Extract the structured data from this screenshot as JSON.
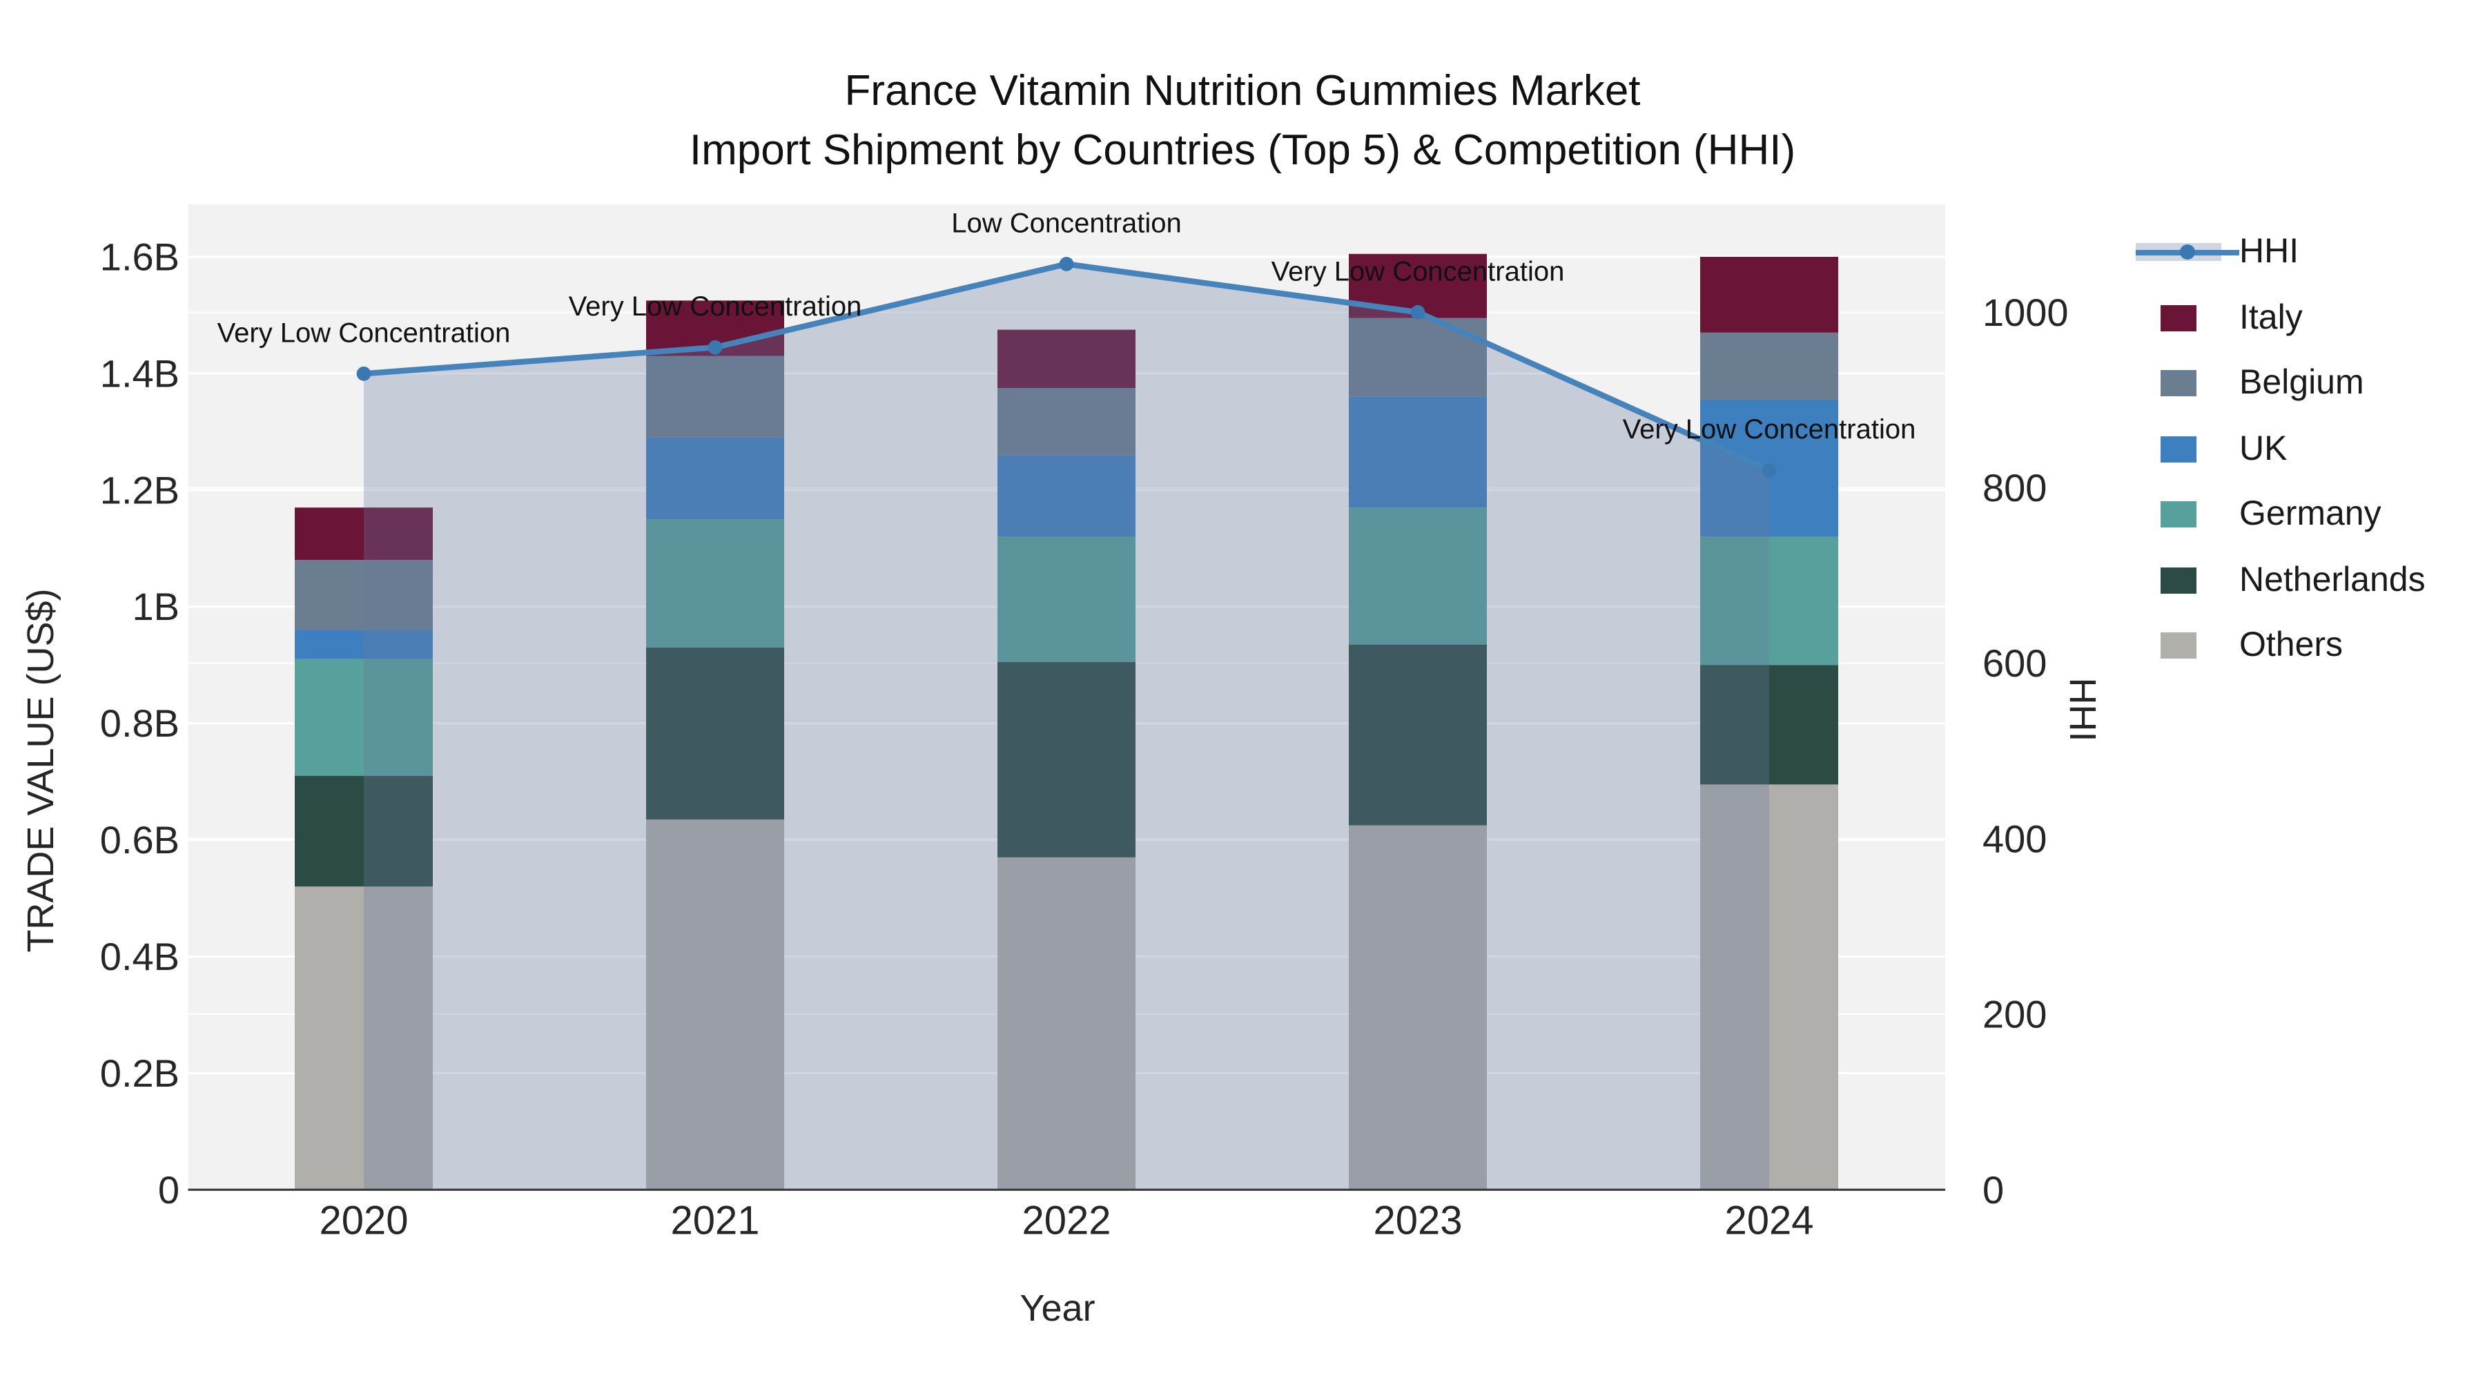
{
  "chart_data": {
    "type": "combo-stacked-bar-line",
    "title_lines": [
      "France Vitamin Nutrition Gummies Market",
      "Import Shipment by Countries (Top 5) & Competition (HHI)"
    ],
    "xlabel": "Year",
    "ylabel_left": "TRADE VALUE (US$)",
    "ylabel_right": "HHI",
    "categories": [
      "2020",
      "2021",
      "2022",
      "2023",
      "2024"
    ],
    "value_unit": "billions US$",
    "series": [
      {
        "name": "Others",
        "color": "#b1afac",
        "values": [
          0.52,
          0.635,
          0.57,
          0.625,
          0.695
        ]
      },
      {
        "name": "Netherlands",
        "color": "#2d4b45",
        "values": [
          0.19,
          0.295,
          0.335,
          0.31,
          0.205
        ]
      },
      {
        "name": "Germany",
        "color": "#58a09b",
        "values": [
          0.2,
          0.22,
          0.215,
          0.235,
          0.22
        ]
      },
      {
        "name": "UK",
        "color": "#3e80bf",
        "values": [
          0.05,
          0.14,
          0.14,
          0.19,
          0.235
        ]
      },
      {
        "name": "Belgium",
        "color": "#6b7d90",
        "values": [
          0.12,
          0.14,
          0.115,
          0.135,
          0.115
        ]
      },
      {
        "name": "Italy",
        "color": "#6a1438",
        "values": [
          0.09,
          0.095,
          0.1,
          0.11,
          0.13
        ]
      }
    ],
    "hhi": {
      "name": "HHI",
      "values": [
        930,
        960,
        1055,
        1000,
        820
      ],
      "line_color": "#4583ba",
      "marker_color": "#3a78b2",
      "fill_color": "#667a9e",
      "fill_opacity": 0.31,
      "legend_band_color": "#cfd6e1"
    },
    "annotations": [
      "Very Low Concentration",
      "Very Low Concentration",
      "Low Concentration",
      "Very Low Concentration",
      "Very Low Concentration"
    ],
    "y_left_ticks": {
      "values": [
        0,
        0.2,
        0.4,
        0.6,
        0.8,
        1.0,
        1.2,
        1.4,
        1.6
      ],
      "labels": [
        "0",
        "0.2B",
        "0.4B",
        "0.6B",
        "0.8B",
        "1B",
        "1.2B",
        "1.4B",
        "1.6B"
      ],
      "axis_max": 1.69
    },
    "y_right_ticks": {
      "values": [
        0,
        200,
        400,
        600,
        800,
        1000
      ],
      "labels": [
        "0",
        "200",
        "400",
        "600",
        "800",
        "1000"
      ],
      "axis_max": 1123
    },
    "legend": [
      {
        "name": "HHI",
        "type": "line"
      },
      {
        "name": "Italy",
        "type": "swatch"
      },
      {
        "name": "Belgium",
        "type": "swatch"
      },
      {
        "name": "UK",
        "type": "swatch"
      },
      {
        "name": "Germany",
        "type": "swatch"
      },
      {
        "name": "Netherlands",
        "type": "swatch"
      },
      {
        "name": "Others",
        "type": "swatch"
      }
    ],
    "colors": {
      "plot_bg": "#f2f2f2",
      "grid": "#ffffff",
      "axis_line": "#3b3b3b",
      "tick_text": "#262626",
      "annotation_text": "#111111"
    }
  }
}
